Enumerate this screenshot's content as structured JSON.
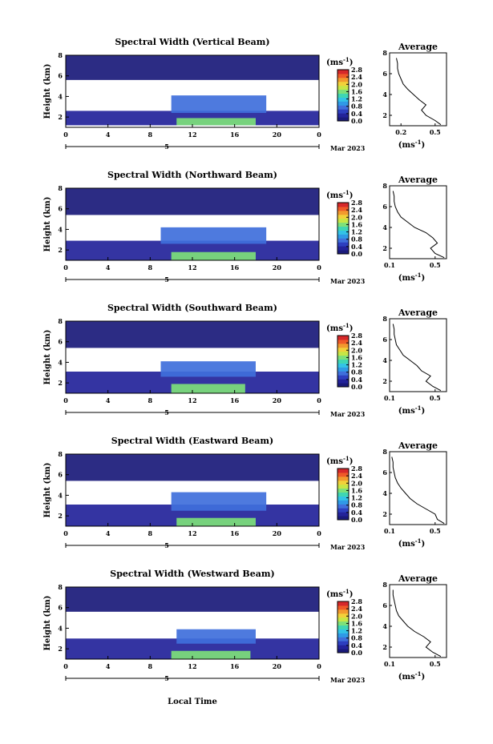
{
  "figure": {
    "xlabel": "Local Time",
    "date_label": "Mar 2023",
    "day_label": "5",
    "unit_label": "(ms",
    "unit_exp": "-1",
    "avg_title": "Average",
    "avg_unit": "(ms",
    "avg_unit_exp": "-1"
  },
  "colors": {
    "scale": [
      "#1a1a7a",
      "#23239a",
      "#2d3fbf",
      "#3f6fdb",
      "#2f9ae6",
      "#33c3e6",
      "#3fd6b3",
      "#7de07a",
      "#c7e646",
      "#f2d13a",
      "#f29a2e",
      "#ef5a28",
      "#d6282a"
    ]
  },
  "chart_data": [
    {
      "type": "heatmap",
      "title": "Spectral Width (Vertical Beam)",
      "ylabel": "Height (km)",
      "x_ticks": [
        "0",
        "4",
        "8",
        "12",
        "16",
        "20",
        "0"
      ],
      "y_ticks": [
        "2",
        "4",
        "6",
        "8"
      ],
      "xlim": [
        0,
        24
      ],
      "ylim": [
        1,
        8
      ],
      "colorbar_ticks": [
        "0.0",
        "0.4",
        "0.8",
        "1.2",
        "1.6",
        "2.0",
        "2.4",
        "2.8"
      ],
      "clim": [
        0,
        2.8
      ],
      "layers": [
        {
          "x0": 0,
          "x1": 24,
          "y0": 1.2,
          "y1": 2.6,
          "value": 0.3
        },
        {
          "x0": 10,
          "x1": 19,
          "y0": 2.4,
          "y1": 4.1,
          "value": 0.8
        },
        {
          "x0": 10.5,
          "x1": 18,
          "y0": 1.2,
          "y1": 1.9,
          "value": 1.6
        },
        {
          "x0": 0,
          "x1": 24,
          "y0": 5.6,
          "y1": 8,
          "value": 0.15
        }
      ],
      "average": {
        "xlim": [
          0.1,
          0.6
        ],
        "x_ticks": [
          "0.2",
          "0.5"
        ],
        "ylim": [
          1,
          8
        ],
        "y_ticks": [
          "2",
          "4",
          "6",
          "8"
        ],
        "height": [
          1.1,
          1.5,
          2,
          2.5,
          3,
          3.5,
          4,
          4.5,
          5,
          5.5,
          6,
          6.5,
          7,
          7.5
        ],
        "value": [
          0.55,
          0.5,
          0.42,
          0.38,
          0.42,
          0.36,
          0.31,
          0.26,
          0.22,
          0.2,
          0.18,
          0.17,
          0.17,
          0.16
        ]
      }
    },
    {
      "type": "heatmap",
      "title": "Spectral Width (Northward Beam)",
      "ylabel": "Height (km)",
      "x_ticks": [
        "0",
        "4",
        "8",
        "12",
        "16",
        "20",
        "0"
      ],
      "y_ticks": [
        "2",
        "4",
        "6",
        "8"
      ],
      "xlim": [
        0,
        24
      ],
      "ylim": [
        1,
        8
      ],
      "colorbar_ticks": [
        "0.0",
        "0.4",
        "0.8",
        "1.2",
        "1.6",
        "2.0",
        "2.4",
        "2.8"
      ],
      "clim": [
        0,
        2.8
      ],
      "layers": [
        {
          "x0": 0,
          "x1": 24,
          "y0": 1.0,
          "y1": 2.9,
          "value": 0.3
        },
        {
          "x0": 9,
          "x1": 19,
          "y0": 2.6,
          "y1": 4.2,
          "value": 0.8
        },
        {
          "x0": 10,
          "x1": 18,
          "y0": 1.0,
          "y1": 1.8,
          "value": 1.6
        },
        {
          "x0": 0,
          "x1": 24,
          "y0": 5.4,
          "y1": 8,
          "value": 0.15
        }
      ],
      "average": {
        "xlim": [
          0.1,
          0.6
        ],
        "x_ticks": [
          "0.1",
          "0.5"
        ],
        "ylim": [
          1,
          8
        ],
        "y_ticks": [
          "2",
          "4",
          "6",
          "8"
        ],
        "height": [
          1.1,
          1.5,
          2,
          2.5,
          3,
          3.5,
          4,
          4.5,
          5,
          5.5,
          6,
          6.5,
          7,
          7.5
        ],
        "value": [
          0.58,
          0.5,
          0.46,
          0.52,
          0.48,
          0.42,
          0.32,
          0.26,
          0.2,
          0.17,
          0.15,
          0.14,
          0.14,
          0.13
        ]
      }
    },
    {
      "type": "heatmap",
      "title": "Spectral Width (Southward Beam)",
      "ylabel": "Height (km)",
      "x_ticks": [
        "0",
        "4",
        "8",
        "12",
        "16",
        "20",
        "0"
      ],
      "y_ticks": [
        "2",
        "4",
        "6",
        "8"
      ],
      "xlim": [
        0,
        24
      ],
      "ylim": [
        1,
        8
      ],
      "colorbar_ticks": [
        "0.0",
        "0.4",
        "0.8",
        "1.2",
        "1.6",
        "2.0",
        "2.4",
        "2.8"
      ],
      "clim": [
        0,
        2.8
      ],
      "layers": [
        {
          "x0": 0,
          "x1": 24,
          "y0": 1.0,
          "y1": 3.1,
          "value": 0.3
        },
        {
          "x0": 9,
          "x1": 18,
          "y0": 2.6,
          "y1": 4.1,
          "value": 0.8
        },
        {
          "x0": 10,
          "x1": 17,
          "y0": 1.0,
          "y1": 1.9,
          "value": 1.6
        },
        {
          "x0": 0,
          "x1": 24,
          "y0": 5.4,
          "y1": 8,
          "value": 0.15
        }
      ],
      "average": {
        "xlim": [
          0.1,
          0.6
        ],
        "x_ticks": [
          "0.1",
          "0.5"
        ],
        "ylim": [
          1,
          8
        ],
        "y_ticks": [
          "2",
          "4",
          "6",
          "8"
        ],
        "height": [
          1.1,
          1.5,
          2,
          2.5,
          3,
          3.5,
          4,
          4.5,
          5,
          5.5,
          6,
          6.5,
          7,
          7.5
        ],
        "value": [
          0.55,
          0.48,
          0.42,
          0.46,
          0.38,
          0.34,
          0.28,
          0.22,
          0.19,
          0.16,
          0.15,
          0.14,
          0.14,
          0.13
        ]
      }
    },
    {
      "type": "heatmap",
      "title": "Spectral Width (Eastward Beam)",
      "ylabel": "Height (km)",
      "x_ticks": [
        "0",
        "4",
        "8",
        "12",
        "16",
        "20",
        "0"
      ],
      "y_ticks": [
        "2",
        "4",
        "6",
        "8"
      ],
      "xlim": [
        0,
        24
      ],
      "ylim": [
        1,
        8
      ],
      "colorbar_ticks": [
        "0.0",
        "0.4",
        "0.8",
        "1.2",
        "1.6",
        "2.0",
        "2.4",
        "2.8"
      ],
      "clim": [
        0,
        2.8
      ],
      "layers": [
        {
          "x0": 0,
          "x1": 24,
          "y0": 1.0,
          "y1": 3.1,
          "value": 0.3
        },
        {
          "x0": 10,
          "x1": 19,
          "y0": 2.5,
          "y1": 4.3,
          "value": 0.8
        },
        {
          "x0": 10.5,
          "x1": 18,
          "y0": 1.0,
          "y1": 1.8,
          "value": 1.6
        },
        {
          "x0": 0,
          "x1": 24,
          "y0": 5.4,
          "y1": 8,
          "value": 0.15
        }
      ],
      "average": {
        "xlim": [
          0.1,
          0.6
        ],
        "x_ticks": [
          "0.1",
          "0.5"
        ],
        "ylim": [
          1,
          8
        ],
        "y_ticks": [
          "2",
          "4",
          "6",
          "8"
        ],
        "height": [
          1.1,
          1.5,
          2,
          2.5,
          3,
          3.5,
          4,
          4.5,
          5,
          5.5,
          6,
          6.5,
          7,
          7.5
        ],
        "value": [
          0.58,
          0.52,
          0.5,
          0.42,
          0.34,
          0.28,
          0.24,
          0.2,
          0.17,
          0.15,
          0.14,
          0.13,
          0.13,
          0.12
        ]
      }
    },
    {
      "type": "heatmap",
      "title": "Spectral Width (Westward Beam)",
      "ylabel": "Height (km)",
      "x_ticks": [
        "0",
        "4",
        "8",
        "12",
        "16",
        "20",
        "0"
      ],
      "y_ticks": [
        "2",
        "4",
        "6",
        "8"
      ],
      "xlim": [
        0,
        24
      ],
      "ylim": [
        1,
        8
      ],
      "colorbar_ticks": [
        "0.0",
        "0.4",
        "0.8",
        "1.2",
        "1.6",
        "2.0",
        "2.4",
        "2.8"
      ],
      "clim": [
        0,
        2.8
      ],
      "layers": [
        {
          "x0": 0,
          "x1": 24,
          "y0": 1.0,
          "y1": 3.0,
          "value": 0.3
        },
        {
          "x0": 10.5,
          "x1": 18,
          "y0": 2.5,
          "y1": 3.9,
          "value": 0.8
        },
        {
          "x0": 10,
          "x1": 17.5,
          "y0": 1.0,
          "y1": 1.8,
          "value": 1.6
        },
        {
          "x0": 0,
          "x1": 24,
          "y0": 5.6,
          "y1": 8,
          "value": 0.15
        }
      ],
      "average": {
        "xlim": [
          0.1,
          0.6
        ],
        "x_ticks": [
          "0.1",
          "0.5"
        ],
        "ylim": [
          1,
          8
        ],
        "y_ticks": [
          "2",
          "4",
          "6",
          "8"
        ],
        "height": [
          1.1,
          1.5,
          2,
          2.5,
          3,
          3.5,
          4,
          4.5,
          5,
          5.5,
          6,
          6.5,
          7,
          7.5
        ],
        "value": [
          0.55,
          0.48,
          0.42,
          0.46,
          0.4,
          0.32,
          0.26,
          0.22,
          0.18,
          0.16,
          0.15,
          0.14,
          0.13,
          0.13
        ]
      }
    }
  ]
}
